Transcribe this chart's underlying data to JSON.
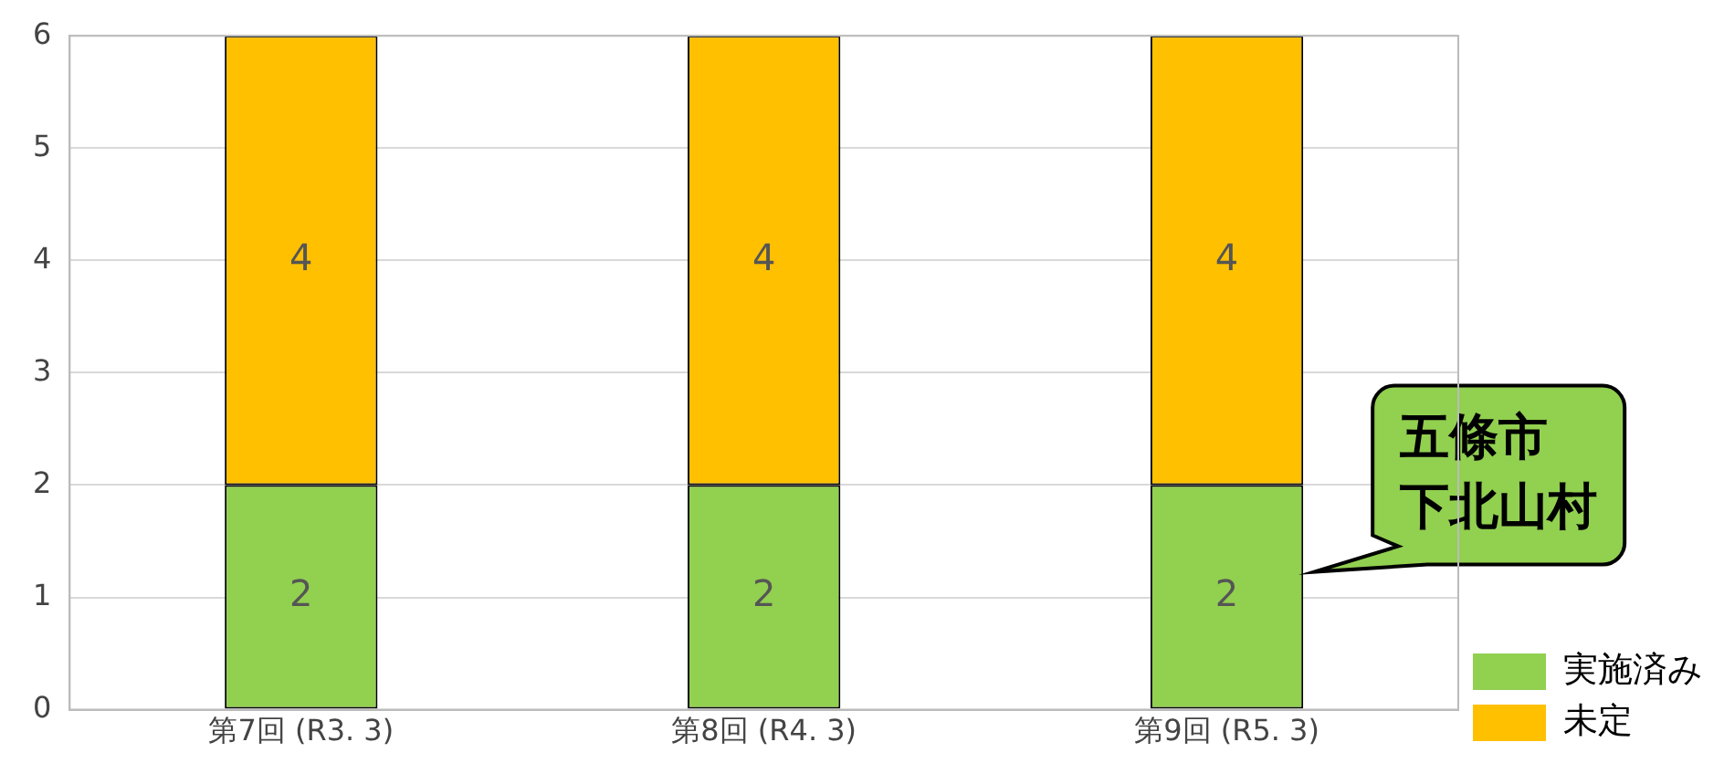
{
  "chart_data": {
    "type": "bar",
    "stacked": true,
    "categories": [
      "第7回 (R3. 3)",
      "第8回 (R4. 3)",
      "第9回 (R5. 3)"
    ],
    "series": [
      {
        "name": "実施済み",
        "color": "#92d050",
        "values": [
          2,
          2,
          2
        ]
      },
      {
        "name": "未定",
        "color": "#ffc000",
        "values": [
          4,
          4,
          4
        ]
      }
    ],
    "ylim": [
      0,
      6
    ],
    "yticks": [
      0,
      1,
      2,
      3,
      4,
      5,
      6
    ],
    "grid": "y",
    "legend": "bottom right",
    "data_labels": true,
    "annotations": [
      "五條市",
      "下北山村"
    ]
  }
}
